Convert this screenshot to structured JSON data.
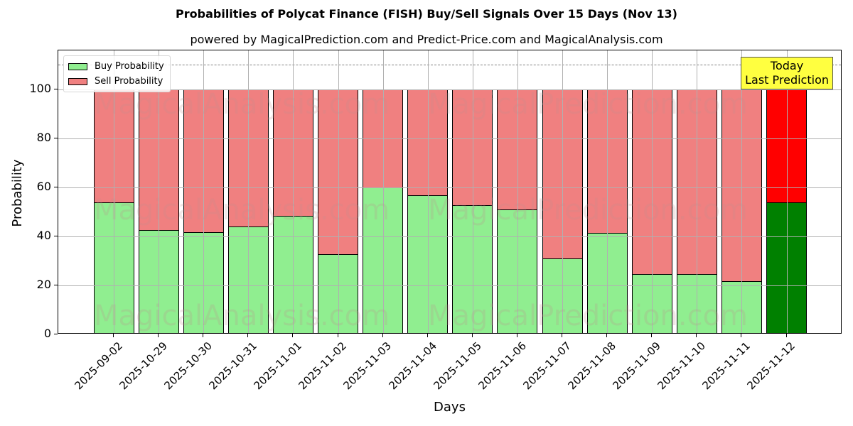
{
  "chart_data": {
    "type": "bar",
    "stacked": true,
    "title": "Probabilities of Polycat Finance (FISH) Buy/Sell Signals Over 15 Days (Nov 13)",
    "subtitle": "powered by MagicalPrediction.com and Predict-Price.com and MagicalAnalysis.com",
    "xlabel": "Days",
    "ylabel": "Probability",
    "ylim": [
      0,
      115
    ],
    "yticks": [
      0,
      20,
      40,
      60,
      80,
      100
    ],
    "grid": true,
    "legend_position": "upper left",
    "reference_line": {
      "y": 110,
      "style": "dashed",
      "color": "#808080"
    },
    "categories": [
      "2025-09-02",
      "2025-10-29",
      "2025-10-30",
      "2025-10-31",
      "2025-11-01",
      "2025-11-02",
      "2025-11-03",
      "2025-11-04",
      "2025-11-05",
      "2025-11-06",
      "2025-11-07",
      "2025-11-08",
      "2025-11-09",
      "2025-11-10",
      "2025-11-11",
      "2025-11-12"
    ],
    "series": [
      {
        "name": "Buy Probability",
        "color": "#90ee90",
        "highlight_color": "#008000",
        "values": [
          53.7,
          42.5,
          41.7,
          43.9,
          48.3,
          32.6,
          59.9,
          56.6,
          52.8,
          50.8,
          31.1,
          41.5,
          24.5,
          24.5,
          21.6,
          53.7
        ]
      },
      {
        "name": "Sell Probability",
        "color": "#f08080",
        "highlight_color": "#ff0000",
        "values": [
          46.3,
          57.5,
          58.3,
          56.1,
          51.7,
          67.4,
          40.1,
          43.4,
          47.2,
          49.2,
          68.9,
          58.5,
          75.5,
          75.5,
          78.4,
          46.3
        ]
      }
    ],
    "annotation": {
      "text_line1": "Today",
      "text_line2": "Last Prediction",
      "target": "2025-11-12",
      "background": "#ffff40"
    },
    "watermarks": [
      "MagicalAnalysis.com",
      "MagicalPrediction.com"
    ]
  }
}
